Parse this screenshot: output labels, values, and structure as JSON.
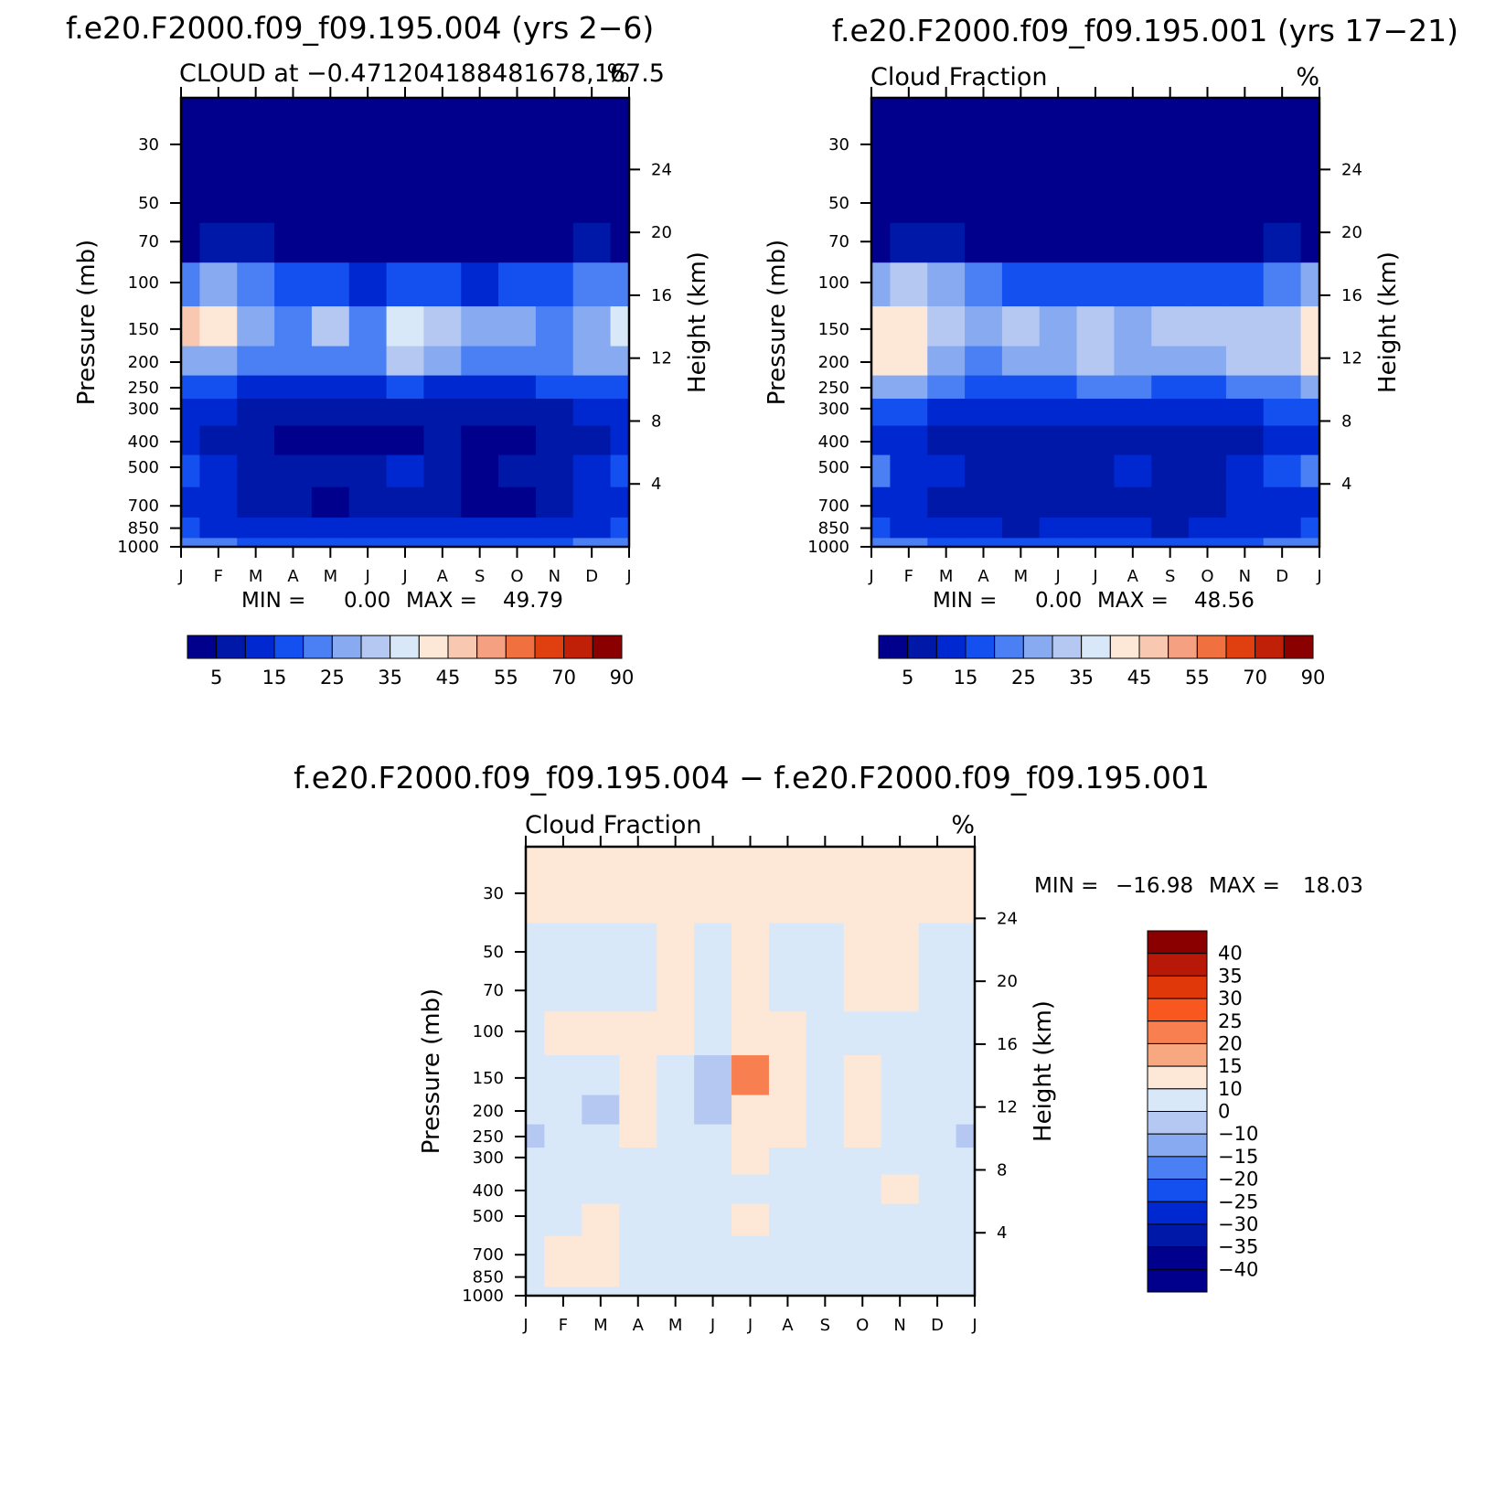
{
  "chart_data": [
    {
      "type": "heatmap",
      "title": "f.e20.F2000.f09_f09.195.004 (yrs 2−6)",
      "subtitle_left": "CLOUD at −0.471204188481678,167.5",
      "subtitle_right": "%",
      "x_ticks": [
        "J",
        "F",
        "M",
        "A",
        "M",
        "J",
        "J",
        "A",
        "S",
        "O",
        "N",
        "D",
        "J"
      ],
      "ylabel": "Pressure (mb)",
      "y_ticks": [
        30,
        50,
        70,
        100,
        150,
        200,
        250,
        300,
        400,
        500,
        700,
        850,
        1000
      ],
      "y_range_mb": [
        20,
        1000
      ],
      "y2label": "Height (km)",
      "y2_ticks": [
        24,
        20,
        16,
        12,
        8,
        4
      ],
      "min_label": "MIN =",
      "min_value": "0.00",
      "max_label": "MAX =",
      "max_value": "49.79",
      "colorbar_labels": [
        "5",
        "15",
        "25",
        "35",
        "45",
        "55",
        "70",
        "90"
      ],
      "rows_pressure_mb": [
        1000,
        850,
        700,
        500,
        400,
        300,
        250,
        200,
        150,
        100,
        70,
        50,
        30,
        20
      ],
      "z": [
        [
          20,
          20,
          18,
          18,
          18,
          18,
          18,
          18,
          18,
          18,
          18,
          20,
          20
        ],
        [
          15,
          14,
          12,
          11,
          11,
          11,
          11,
          11,
          11,
          11,
          12,
          14,
          15
        ],
        [
          12,
          10,
          8,
          6,
          3,
          5,
          8,
          8,
          3,
          3,
          8,
          10,
          12
        ],
        [
          19,
          12,
          9,
          7,
          6,
          6,
          14,
          8,
          4,
          6,
          8,
          13,
          19
        ],
        [
          10,
          8,
          7,
          3,
          2,
          2,
          4,
          5,
          3,
          3,
          6,
          8,
          10
        ],
        [
          12,
          10,
          8,
          7,
          6,
          5,
          8,
          8,
          7,
          7,
          9,
          11,
          12
        ],
        [
          17,
          15,
          14,
          13,
          12,
          12,
          16,
          14,
          13,
          13,
          15,
          16,
          17
        ],
        [
          25,
          26,
          22,
          20,
          20,
          20,
          33,
          27,
          22,
          20,
          22,
          26,
          25
        ],
        [
          45,
          40,
          28,
          24,
          30,
          20,
          37,
          30,
          28,
          25,
          23,
          26,
          38
        ],
        [
          22,
          27,
          23,
          18,
          15,
          14,
          16,
          16,
          14,
          16,
          15,
          20,
          22
        ],
        [
          4,
          5,
          5,
          4,
          3,
          3,
          3,
          3,
          3,
          3,
          4,
          5,
          4
        ],
        [
          2,
          2,
          2,
          2,
          2,
          2,
          2,
          2,
          2,
          2,
          2,
          2,
          2
        ],
        [
          2,
          2,
          2,
          2,
          2,
          2,
          2,
          2,
          2,
          2,
          2,
          2,
          2
        ],
        [
          2,
          2,
          2,
          2,
          2,
          2,
          2,
          2,
          2,
          2,
          2,
          2,
          2
        ]
      ]
    },
    {
      "type": "heatmap",
      "title": "f.e20.F2000.f09_f09.195.001 (yrs 17−21)",
      "subtitle_left": "Cloud Fraction",
      "subtitle_right": "%",
      "x_ticks": [
        "J",
        "F",
        "M",
        "A",
        "M",
        "J",
        "J",
        "A",
        "S",
        "O",
        "N",
        "D",
        "J"
      ],
      "ylabel": "Pressure (mb)",
      "y_ticks": [
        30,
        50,
        70,
        100,
        150,
        200,
        250,
        300,
        400,
        500,
        700,
        850,
        1000
      ],
      "y_range_mb": [
        20,
        1000
      ],
      "y2label": "Height (km)",
      "y2_ticks": [
        24,
        20,
        16,
        12,
        8,
        4
      ],
      "min_label": "MIN =",
      "min_value": "0.00",
      "max_label": "MAX =",
      "max_value": "48.56",
      "colorbar_labels": [
        "5",
        "15",
        "25",
        "35",
        "45",
        "55",
        "70",
        "90"
      ],
      "rows_pressure_mb": [
        1000,
        850,
        700,
        500,
        400,
        300,
        250,
        200,
        150,
        100,
        70,
        50,
        30,
        20
      ],
      "z": [
        [
          20,
          20,
          18,
          18,
          18,
          18,
          18,
          18,
          18,
          18,
          18,
          20,
          20
        ],
        [
          15,
          13,
          11,
          10,
          9,
          10,
          11,
          10,
          9,
          10,
          11,
          14,
          15
        ],
        [
          14,
          12,
          9,
          8,
          8,
          8,
          8,
          8,
          9,
          9,
          10,
          13,
          14
        ],
        [
          22,
          14,
          10,
          8,
          8,
          8,
          8,
          10,
          9,
          8,
          10,
          15,
          22
        ],
        [
          14,
          10,
          8,
          7,
          6,
          7,
          8,
          8,
          7,
          7,
          8,
          10,
          14
        ],
        [
          17,
          15,
          13,
          12,
          12,
          12,
          14,
          12,
          12,
          12,
          13,
          15,
          17
        ],
        [
          28,
          26,
          20,
          18,
          18,
          18,
          22,
          20,
          18,
          18,
          20,
          24,
          28
        ],
        [
          42,
          40,
          28,
          23,
          26,
          25,
          34,
          26,
          26,
          26,
          30,
          34,
          42
        ],
        [
          44,
          44,
          32,
          26,
          30,
          28,
          33,
          28,
          34,
          30,
          30,
          32,
          44
        ],
        [
          25,
          32,
          25,
          20,
          17,
          15,
          15,
          16,
          16,
          17,
          19,
          22,
          25
        ],
        [
          4,
          5,
          5,
          4,
          3,
          3,
          3,
          3,
          3,
          3,
          4,
          5,
          4
        ],
        [
          2,
          2,
          2,
          2,
          2,
          2,
          2,
          2,
          2,
          2,
          2,
          2,
          2
        ],
        [
          2,
          2,
          2,
          2,
          2,
          2,
          2,
          2,
          2,
          2,
          2,
          2,
          2
        ],
        [
          2,
          2,
          2,
          2,
          2,
          2,
          2,
          2,
          2,
          2,
          2,
          2,
          2
        ]
      ]
    },
    {
      "type": "heatmap",
      "title": "f.e20.F2000.f09_f09.195.004 − f.e20.F2000.f09_f09.195.001",
      "subtitle_left": "Cloud Fraction",
      "subtitle_right": "%",
      "x_ticks": [
        "J",
        "F",
        "M",
        "A",
        "M",
        "J",
        "J",
        "A",
        "S",
        "O",
        "N",
        "D",
        "J"
      ],
      "ylabel": "Pressure (mb)",
      "y_ticks": [
        30,
        50,
        70,
        100,
        150,
        200,
        250,
        300,
        400,
        500,
        700,
        850,
        1000
      ],
      "y_range_mb": [
        20,
        1000
      ],
      "y2label": "Height (km)",
      "y2_ticks": [
        24,
        20,
        16,
        12,
        8,
        4
      ],
      "min_label": "MIN =",
      "min_value": "−16.98",
      "max_label": "MAX =",
      "max_value": "18.03",
      "colorbar_labels": [
        "40",
        "35",
        "30",
        "25",
        "20",
        "15",
        "10",
        "0",
        "−10",
        "−15",
        "−20",
        "−25",
        "−30",
        "−35",
        "−40"
      ],
      "rows_pressure_mb": [
        1000,
        850,
        700,
        500,
        400,
        300,
        250,
        200,
        150,
        100,
        70,
        50,
        30,
        20
      ],
      "z": [
        [
          -2,
          -2,
          -2,
          -2,
          -2,
          -2,
          -2,
          -2,
          -2,
          -2,
          -2,
          -2,
          -2
        ],
        [
          -2,
          3,
          2,
          -2,
          -2,
          -2,
          -2,
          -2,
          -2,
          -2,
          -2,
          -2,
          -2
        ],
        [
          -2,
          3,
          3,
          -2,
          -2,
          -2,
          -2,
          -2,
          -2,
          -2,
          -2,
          -2,
          -2
        ],
        [
          -2,
          -2,
          4,
          -2,
          -2,
          -2,
          3,
          -2,
          -2,
          -2,
          -2,
          -2,
          -2
        ],
        [
          -5,
          -2,
          -2,
          -2,
          -2,
          -2,
          -2,
          -2,
          -2,
          -2,
          3,
          -2,
          -5
        ],
        [
          -10,
          -8,
          -4,
          -2,
          -2,
          -2,
          3,
          -2,
          -2,
          -2,
          -2,
          -2,
          -10
        ],
        [
          -11,
          -8,
          -5,
          3,
          -2,
          -2,
          4,
          2,
          -2,
          4,
          -2,
          -2,
          -11
        ],
        [
          -10,
          -8,
          -12,
          3,
          -2,
          -11,
          3,
          3,
          -2,
          4,
          -2,
          -2,
          -10
        ],
        [
          -2,
          -5,
          -10,
          4,
          -2,
          -12,
          16,
          4,
          -2,
          3,
          -2,
          -2,
          -2
        ],
        [
          -2,
          2,
          5,
          4,
          3,
          -2,
          4,
          2,
          -2,
          -2,
          -2,
          -2,
          -2
        ],
        [
          -2,
          -2,
          -2,
          -2,
          3,
          -2,
          3,
          -2,
          -2,
          3,
          2,
          -2,
          -2
        ],
        [
          -2,
          -2,
          -2,
          -2,
          3,
          -2,
          3,
          -2,
          -2,
          3,
          2,
          -2,
          -2
        ],
        [
          3,
          3,
          3,
          3,
          3,
          3,
          3,
          3,
          3,
          3,
          3,
          3,
          3
        ],
        [
          3,
          3,
          3,
          3,
          3,
          3,
          3,
          3,
          3,
          3,
          3,
          3,
          3
        ]
      ]
    }
  ]
}
